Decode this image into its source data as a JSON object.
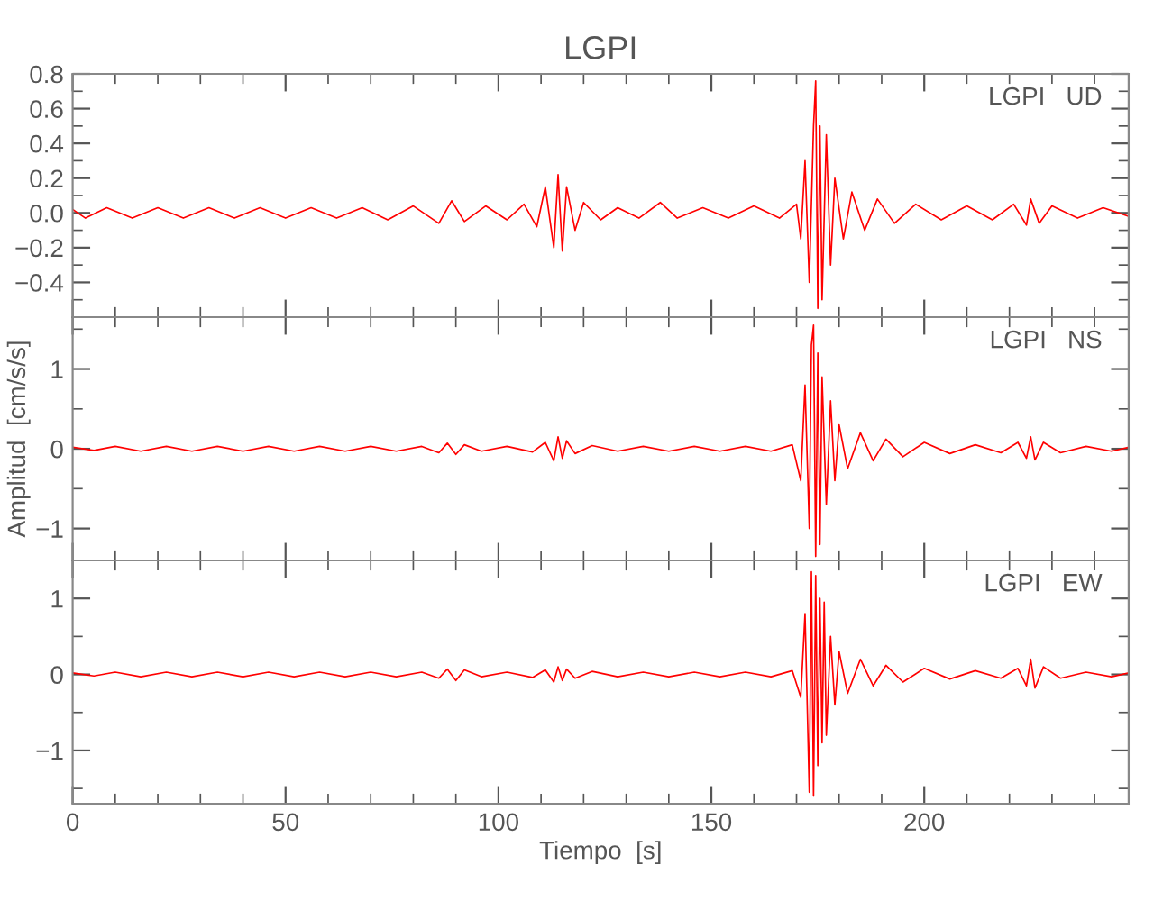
{
  "chart_data": [
    {
      "type": "line",
      "title": "LGPI",
      "annotations": [
        "LGPI   UD"
      ],
      "xlim": [
        0,
        248
      ],
      "xticks": [
        0,
        50,
        100,
        150,
        200
      ],
      "ylim": [
        -0.6,
        0.8
      ],
      "yticks": [
        {
          "value": -0.4,
          "label": "−0.4"
        },
        {
          "value": -0.2,
          "label": "−0.2"
        },
        {
          "value": 0.0,
          "label": "0.0"
        },
        {
          "value": 0.2,
          "label": "0.2"
        },
        {
          "value": 0.4,
          "label": "0.4"
        },
        {
          "value": 0.6,
          "label": "0.6"
        },
        {
          "value": 0.8,
          "label": "0.8"
        }
      ],
      "tick_labels": "y",
      "grid": false,
      "legend": false,
      "series": [
        {
          "color": "#ff0000",
          "x": [
            0,
            3,
            8,
            14,
            20,
            26,
            32,
            38,
            44,
            50,
            56,
            62,
            68,
            74,
            80,
            86,
            89,
            92,
            97,
            102,
            106,
            109,
            111,
            113,
            114,
            115,
            116,
            118,
            120,
            124,
            128,
            133,
            138,
            142,
            148,
            154,
            160,
            166,
            170,
            171,
            172,
            173,
            174,
            174.5,
            175,
            175.5,
            176,
            177,
            178,
            179,
            181,
            183,
            186,
            189,
            193,
            198,
            204,
            210,
            216,
            221,
            224,
            225,
            227,
            230,
            236,
            242,
            248
          ],
          "values": [
            0.02,
            -0.03,
            0.03,
            -0.03,
            0.03,
            -0.03,
            0.03,
            -0.03,
            0.03,
            -0.03,
            0.03,
            -0.03,
            0.03,
            -0.04,
            0.04,
            -0.06,
            0.07,
            -0.05,
            0.04,
            -0.04,
            0.05,
            -0.08,
            0.15,
            -0.2,
            0.22,
            -0.22,
            0.15,
            -0.1,
            0.06,
            -0.04,
            0.03,
            -0.03,
            0.06,
            -0.03,
            0.03,
            -0.03,
            0.04,
            -0.03,
            0.05,
            -0.15,
            0.3,
            -0.4,
            0.5,
            0.76,
            -0.55,
            0.5,
            -0.5,
            0.45,
            -0.3,
            0.2,
            -0.15,
            0.12,
            -0.1,
            0.08,
            -0.06,
            0.05,
            -0.04,
            0.04,
            -0.04,
            0.05,
            -0.07,
            0.08,
            -0.06,
            0.04,
            -0.03,
            0.03,
            -0.02
          ]
        }
      ]
    },
    {
      "type": "line",
      "ylabel": "Amplitud  [cm/s/s]",
      "annotations": [
        "LGPI   NS"
      ],
      "xlim": [
        0,
        248
      ],
      "xticks": [
        0,
        50,
        100,
        150,
        200
      ],
      "ylim": [
        -1.4,
        1.65
      ],
      "yticks": [
        {
          "value": -1,
          "label": "−1"
        },
        0,
        1
      ],
      "tick_labels": "y",
      "grid": false,
      "legend": false,
      "series": [
        {
          "color": "#ff0000",
          "x": [
            0,
            5,
            10,
            16,
            22,
            28,
            34,
            40,
            46,
            52,
            58,
            64,
            70,
            76,
            82,
            86,
            88,
            90,
            92,
            96,
            102,
            108,
            111,
            113,
            114,
            115,
            116,
            118,
            122,
            128,
            134,
            140,
            146,
            152,
            158,
            164,
            169,
            171,
            172,
            173,
            173.5,
            174,
            174.5,
            175,
            175.5,
            176,
            177,
            178,
            179,
            180,
            182,
            185,
            188,
            191,
            195,
            200,
            206,
            212,
            218,
            222,
            224,
            225,
            226,
            228,
            232,
            238,
            244,
            248
          ],
          "values": [
            0.02,
            -0.02,
            0.03,
            -0.03,
            0.03,
            -0.03,
            0.03,
            -0.03,
            0.03,
            -0.03,
            0.03,
            -0.03,
            0.03,
            -0.03,
            0.03,
            -0.05,
            0.07,
            -0.07,
            0.05,
            -0.03,
            0.03,
            -0.04,
            0.08,
            -0.15,
            0.15,
            -0.12,
            0.1,
            -0.06,
            0.04,
            -0.03,
            0.03,
            -0.03,
            0.03,
            -0.03,
            0.03,
            -0.03,
            0.05,
            -0.4,
            0.8,
            -1.0,
            1.3,
            1.55,
            -1.35,
            1.2,
            -1.2,
            0.9,
            -0.7,
            0.6,
            -0.4,
            0.3,
            -0.25,
            0.2,
            -0.15,
            0.12,
            -0.1,
            0.08,
            -0.06,
            0.05,
            -0.05,
            0.08,
            -0.12,
            0.15,
            -0.14,
            0.08,
            -0.05,
            0.03,
            -0.03,
            0.02
          ]
        }
      ]
    },
    {
      "type": "line",
      "xlabel": "Tiempo  [s]",
      "annotations": [
        "LGPI   EW"
      ],
      "xlim": [
        0,
        248
      ],
      "xticks": [
        0,
        50,
        100,
        150,
        200
      ],
      "ylim": [
        -1.7,
        1.5
      ],
      "yticks": [
        {
          "value": -1,
          "label": "−1"
        },
        0,
        1
      ],
      "grid": false,
      "legend": false,
      "series": [
        {
          "color": "#ff0000",
          "x": [
            0,
            5,
            10,
            16,
            22,
            28,
            34,
            40,
            46,
            52,
            58,
            64,
            70,
            76,
            82,
            86,
            88,
            90,
            92,
            96,
            102,
            108,
            111,
            113,
            114,
            115,
            116,
            118,
            122,
            128,
            134,
            140,
            146,
            152,
            158,
            164,
            169,
            171,
            172,
            173,
            173.5,
            174,
            174.5,
            175,
            175.5,
            176,
            176.5,
            177,
            178,
            179,
            180,
            182,
            185,
            188,
            191,
            195,
            200,
            206,
            212,
            218,
            222,
            224,
            225,
            226,
            228,
            232,
            238,
            244,
            248
          ],
          "values": [
            0.02,
            -0.02,
            0.03,
            -0.03,
            0.03,
            -0.03,
            0.03,
            -0.03,
            0.03,
            -0.03,
            0.03,
            -0.03,
            0.03,
            -0.03,
            0.03,
            -0.05,
            0.07,
            -0.08,
            0.06,
            -0.03,
            0.03,
            -0.04,
            0.06,
            -0.1,
            0.1,
            -0.08,
            0.07,
            -0.05,
            0.04,
            -0.03,
            0.03,
            -0.03,
            0.03,
            -0.03,
            0.03,
            -0.03,
            0.05,
            -0.3,
            0.8,
            -1.55,
            1.35,
            -1.6,
            1.3,
            -1.2,
            1.0,
            -0.9,
            0.95,
            -0.8,
            0.5,
            -0.4,
            0.3,
            -0.25,
            0.2,
            -0.15,
            0.12,
            -0.1,
            0.08,
            -0.06,
            0.05,
            -0.05,
            0.08,
            -0.15,
            0.2,
            -0.18,
            0.1,
            -0.05,
            0.03,
            -0.03,
            0.02
          ]
        }
      ]
    }
  ]
}
